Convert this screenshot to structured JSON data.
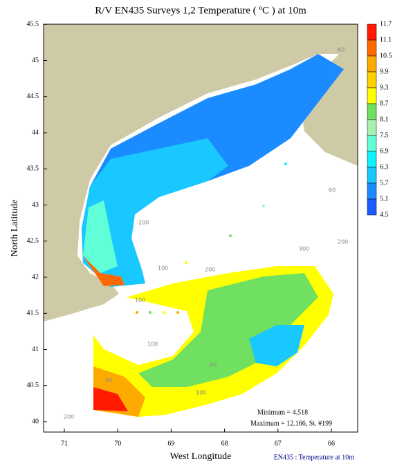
{
  "title": "R/V EN435 Surveys 1,2 Temperature ( ºC ) at 10m",
  "x_axis": {
    "label": "West Longitude",
    "ticks": [
      71,
      70,
      69,
      68,
      67,
      66
    ]
  },
  "y_axis": {
    "label": "North Latitude",
    "ticks": [
      40,
      40.5,
      41,
      41.5,
      42,
      42.5,
      43,
      43.5,
      44,
      44.5,
      45,
      45.5
    ]
  },
  "colorbar": {
    "levels": [
      11.7,
      11.1,
      10.5,
      9.9,
      9.3,
      8.7,
      8.1,
      7.5,
      6.9,
      6.3,
      5.7,
      5.1,
      4.5
    ],
    "colors": [
      "#ff1a00",
      "#ff6a00",
      "#ffaa00",
      "#ffd000",
      "#ffff00",
      "#70e060",
      "#a8f0b0",
      "#60ffd8",
      "#10f0ff",
      "#18c8ff",
      "#1a8cff",
      "#1a5aff"
    ]
  },
  "depth_labels": [
    "60",
    "60",
    "200",
    "100",
    "300",
    "100",
    "200",
    "100",
    "60",
    "60",
    "200",
    "200",
    "100"
  ],
  "stats": {
    "minimum": "Minimum = 4.518",
    "maximum": "Maximum = 12.166, St. #199"
  },
  "footer": "EN435 : Temperature at 10m"
}
